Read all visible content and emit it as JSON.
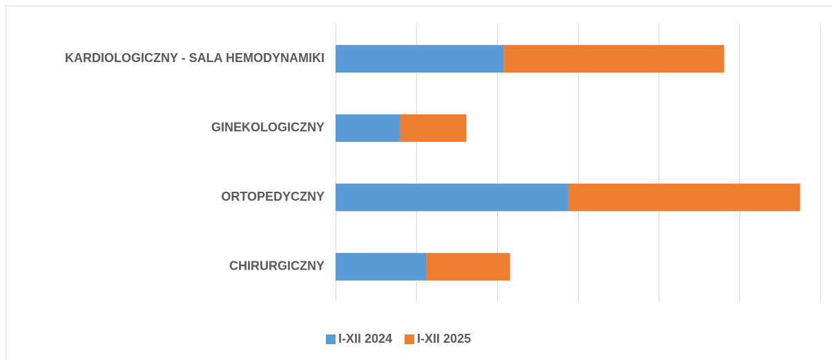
{
  "chart_data": {
    "type": "stacked_barh",
    "categories": [
      "KARDIOLOGICZNY - SALA HEMODYNAMIKI",
      "GINEKOLOGICZNY",
      "ORTOPEDYCZNY",
      "CHIRURGICZNY"
    ],
    "series": [
      {
        "name": "I-XII 2024",
        "color": "#5b9bd5",
        "values": [
          2.08,
          0.8,
          2.88,
          1.12
        ]
      },
      {
        "name": "I-XII 2025",
        "color": "#ed7d31",
        "values": [
          2.73,
          0.82,
          2.87,
          1.04
        ]
      }
    ],
    "xlim": [
      0,
      6
    ],
    "xticks": [
      0,
      1,
      2,
      3,
      4,
      5,
      6
    ],
    "grid": true,
    "legend": "bottom"
  }
}
